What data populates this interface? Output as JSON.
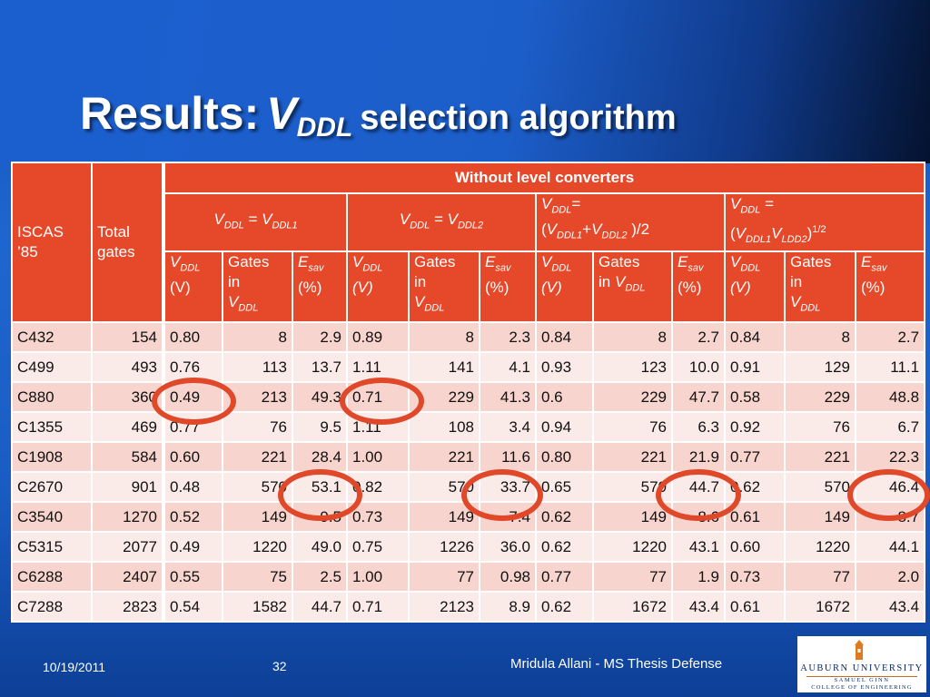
{
  "title": {
    "main": "Results:",
    "var": "V",
    "sub": "DDL",
    "rest": "selection algorithm"
  },
  "table": {
    "header_group": "Without level converters",
    "col_iscas": [
      "ISCAS",
      "’85"
    ],
    "col_total": [
      "Total",
      "gates"
    ],
    "groups": [
      {
        "v": "V",
        "vsub": "DDL",
        "eq": " = ",
        "v2": "V",
        "v2sub": "DDL1"
      },
      {
        "v": "V",
        "vsub": "DDL",
        "eq": " = ",
        "v2": "V",
        "v2sub": "DDL2"
      },
      {
        "line1a": "V",
        "line1sub": "DDL",
        "line1b": "=",
        "line2a": "(",
        "line2b": "V",
        "line2sub1": "DDL1",
        "line2c": "+",
        "line2d": "V",
        "line2sub2": "DDL2",
        "line2e": " )/2"
      },
      {
        "line1a": "V",
        "line1sub": "DDL",
        "line1b": " =",
        "line2a": "(",
        "line2b": "V",
        "line2sub1": "DDL1",
        "line2d": "V",
        "line2sub2": "LDD2",
        "line2e": ")",
        "line2sup": "1/2"
      }
    ],
    "sub": {
      "vddl": {
        "a": "V",
        "sub": "DDL",
        "unit": "(V)"
      },
      "gates": {
        "l1": "Gates",
        "l2": "in",
        "l3": "V",
        "l3sub": "DDL"
      },
      "gates_inline": {
        "l1": "Gates",
        "l2": "in ",
        "l3": "V",
        "l3sub": "DDL"
      },
      "esav": {
        "a": "E",
        "sub": "sav",
        "unit": "(%)"
      }
    },
    "rows": [
      [
        "C432",
        "154",
        "0.80",
        "8",
        "2.9",
        "0.89",
        "8",
        "2.3",
        "0.84",
        "8",
        "2.7",
        "0.84",
        "8",
        "2.7"
      ],
      [
        "C499",
        "493",
        "0.76",
        "113",
        "13.7",
        "1.11",
        "141",
        "4.1",
        "0.93",
        "123",
        "10.0",
        "0.91",
        "129",
        "11.1"
      ],
      [
        "C880",
        "360",
        "0.49",
        "213",
        "49.3",
        "0.71",
        "229",
        "41.3",
        "0.6",
        "229",
        "47.7",
        "0.58",
        "229",
        "48.8"
      ],
      [
        "C1355",
        "469",
        "0.77",
        "76",
        "9.5",
        "1.11",
        "108",
        "3.4",
        "0.94",
        "76",
        "6.3",
        "0.92",
        "76",
        "6.7"
      ],
      [
        "C1908",
        "584",
        "0.60",
        "221",
        "28.4",
        "1.00",
        "221",
        "11.6",
        "0.80",
        "221",
        "21.9",
        "0.77",
        "221",
        "22.3"
      ],
      [
        "C2670",
        "901",
        "0.48",
        "570",
        "53.1",
        "0.82",
        "570",
        "33.7",
        "0.65",
        "570",
        "44.7",
        "0.62",
        "570",
        "46.4"
      ],
      [
        "C3540",
        "1270",
        "0.52",
        "149",
        "9.5",
        "0.73",
        "149",
        "7.4",
        "0.62",
        "149",
        "8.6",
        "0.61",
        "149",
        "8.7"
      ],
      [
        "C5315",
        "2077",
        "0.49",
        "1220",
        "49.0",
        "0.75",
        "1226",
        "36.0",
        "0.62",
        "1220",
        "43.1",
        "0.60",
        "1220",
        "44.1"
      ],
      [
        "C6288",
        "2407",
        "0.55",
        "75",
        "2.5",
        "1.00",
        "77",
        "0.98",
        "0.77",
        "77",
        "1.9",
        "0.73",
        "77",
        "2.0"
      ],
      [
        "C7288",
        "2823",
        "0.54",
        "1582",
        "44.7",
        "0.71",
        "2123",
        "8.9",
        "0.62",
        "1672",
        "43.4",
        "0.61",
        "1672",
        "43.4"
      ]
    ]
  },
  "footer": {
    "date": "10/19/2011",
    "page": "32",
    "author": "Mridula Allani - MS Thesis Defense"
  },
  "logo": {
    "university": "AUBURN UNIVERSITY",
    "line2": "SAMUEL GINN",
    "line3": "COLLEGE OF ENGINEERING"
  },
  "colors": {
    "header": "#e6482a",
    "row_odd": "#f7d4cd",
    "row_even": "#fbebe8",
    "circle": "#e0482a"
  }
}
